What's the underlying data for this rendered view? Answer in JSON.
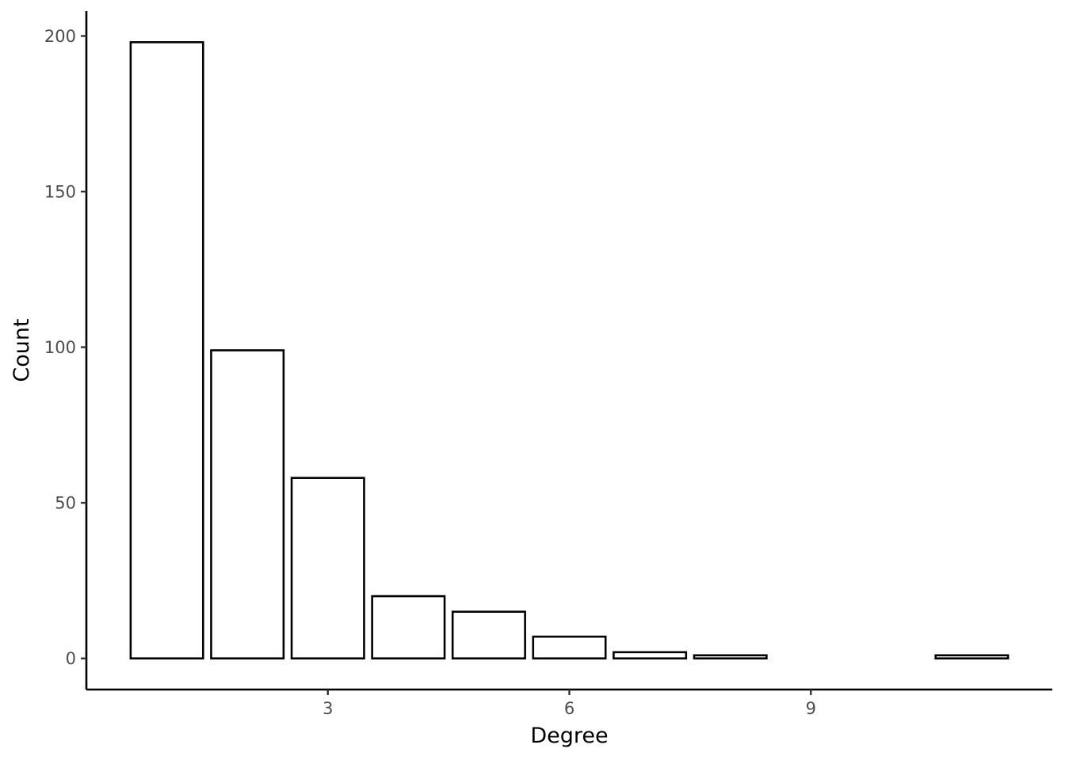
{
  "chart_data": {
    "type": "bar",
    "title": "",
    "xlabel": "Degree",
    "ylabel": "Count",
    "x": [
      1,
      2,
      3,
      4,
      5,
      6,
      7,
      8,
      11
    ],
    "values": [
      198,
      99,
      58,
      20,
      15,
      7,
      2,
      1,
      1
    ],
    "xlim": [
      0,
      12
    ],
    "ylim": [
      -10,
      208
    ],
    "xticks": [
      3,
      6,
      9
    ],
    "xtick_labels": [
      "3",
      "6",
      "9"
    ],
    "yticks": [
      0,
      50,
      100,
      150,
      200
    ],
    "ytick_labels": [
      "0",
      "50",
      "100",
      "150",
      "200"
    ],
    "grid": false,
    "legend": "none",
    "bar_fill": "#ffffff",
    "bar_outline": "#000000",
    "tick_label_color": "#4d4d4d"
  }
}
